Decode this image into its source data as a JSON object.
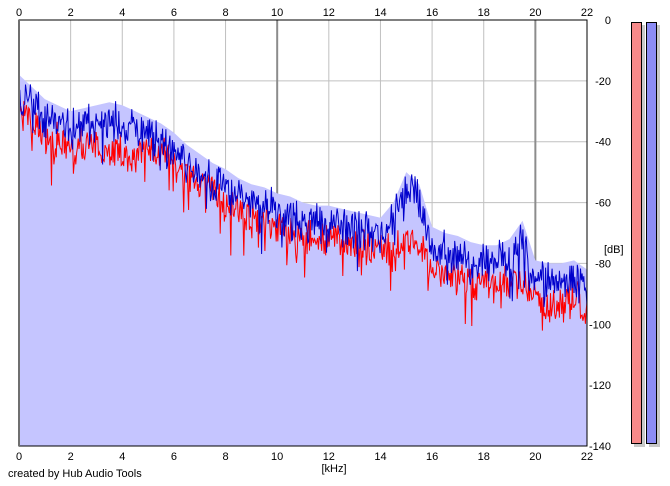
{
  "credit_text": "created by Hub Audio Tools",
  "colors": {
    "area_fill": "#c5c5ff",
    "grid": "#c0c0c0",
    "grid_strong": "#8c8c8c",
    "left_channel": "#ff0000",
    "right_channel": "#0000cc",
    "meter_left": "#f78a8a",
    "meter_right": "#8c8cf5"
  },
  "meters": {
    "left_level": 1.0,
    "right_level": 1.0
  },
  "chart_data": {
    "type": "line",
    "title": "",
    "xlabel": "[kHz]",
    "ylabel": "[dB]",
    "xlim": [
      0,
      22
    ],
    "ylim": [
      -140,
      0
    ],
    "x_ticks": [
      "0",
      "2",
      "4",
      "6",
      "8",
      "10",
      "12",
      "14",
      "16",
      "18",
      "20",
      "22"
    ],
    "y_ticks": [
      "0",
      "-20",
      "-40",
      "-60",
      "-80",
      "-100",
      "-120",
      "-140"
    ],
    "grid": true,
    "legend": "none",
    "x": [
      0,
      0.5,
      1,
      1.5,
      2,
      2.5,
      3,
      3.5,
      4,
      4.5,
      5,
      5.5,
      6,
      6.5,
      7,
      7.5,
      8,
      8.5,
      9,
      9.5,
      10,
      10.5,
      11,
      11.5,
      12,
      12.5,
      13,
      13.5,
      14,
      14.5,
      15,
      15.5,
      16,
      16.5,
      17,
      17.5,
      18,
      18.5,
      19,
      19.5,
      20,
      20.5,
      21,
      21.5,
      22
    ],
    "series": [
      {
        "values": [
          -30,
          -34,
          -38,
          -40,
          -42,
          -41,
          -42,
          -43,
          -44,
          -45,
          -43,
          -45,
          -47,
          -50,
          -53,
          -56,
          -60,
          -63,
          -65,
          -66,
          -68,
          -70,
          -71,
          -72,
          -72,
          -73,
          -74,
          -75,
          -76,
          -75,
          -73,
          -72,
          -82,
          -84,
          -85,
          -86,
          -86,
          -87,
          -86,
          -85,
          -92,
          -94,
          -93,
          -92,
          -94
        ]
      },
      {
        "values": [
          -24,
          -28,
          -32,
          -34,
          -36,
          -35,
          -34,
          -33,
          -34,
          -36,
          -38,
          -40,
          -43,
          -47,
          -50,
          -53,
          -55,
          -58,
          -60,
          -61,
          -63,
          -64,
          -66,
          -67,
          -67,
          -68,
          -69,
          -70,
          -71,
          -66,
          -56,
          -60,
          -74,
          -76,
          -77,
          -79,
          -80,
          -80,
          -78,
          -72,
          -85,
          -86,
          -86,
          -85,
          -88
        ]
      }
    ]
  }
}
